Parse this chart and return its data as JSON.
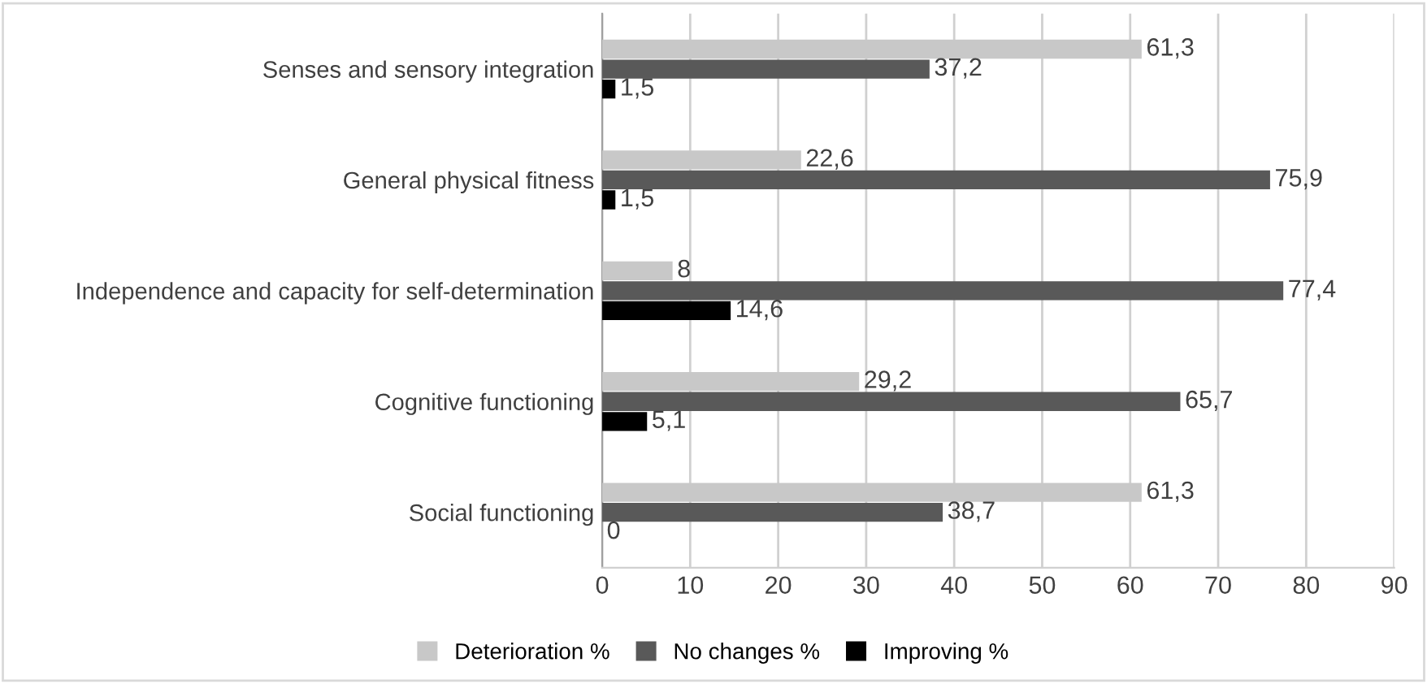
{
  "chart_data": {
    "type": "bar",
    "orientation": "horizontal",
    "categories": [
      "Senses and sensory integration",
      "General physical fitness",
      "Independence and capacity for self-determination",
      "Cognitive functioning",
      "Social functioning"
    ],
    "series": [
      {
        "name": "Deterioration %",
        "color": "#c8c8c8",
        "values": [
          61.3,
          22.6,
          8,
          29.2,
          61.3
        ],
        "value_labels": [
          "61,3",
          "22,6",
          "8",
          "29,2",
          "61,3"
        ]
      },
      {
        "name": "No changes %",
        "color": "#595959",
        "values": [
          37.2,
          75.9,
          77.4,
          65.7,
          38.7
        ],
        "value_labels": [
          "37,2",
          "75,9",
          "77,4",
          "65,7",
          "38,7"
        ]
      },
      {
        "name": "Improving %",
        "color": "#000000",
        "values": [
          1.5,
          1.5,
          14.6,
          5.1,
          0
        ],
        "value_labels": [
          "1,5",
          "1,5",
          "14,6",
          "5,1",
          "0"
        ]
      }
    ],
    "xlim": [
      0,
      90
    ],
    "xticks": [
      0,
      10,
      20,
      30,
      40,
      50,
      60,
      70,
      80,
      90
    ],
    "grid": "x",
    "legend": "bottom"
  }
}
